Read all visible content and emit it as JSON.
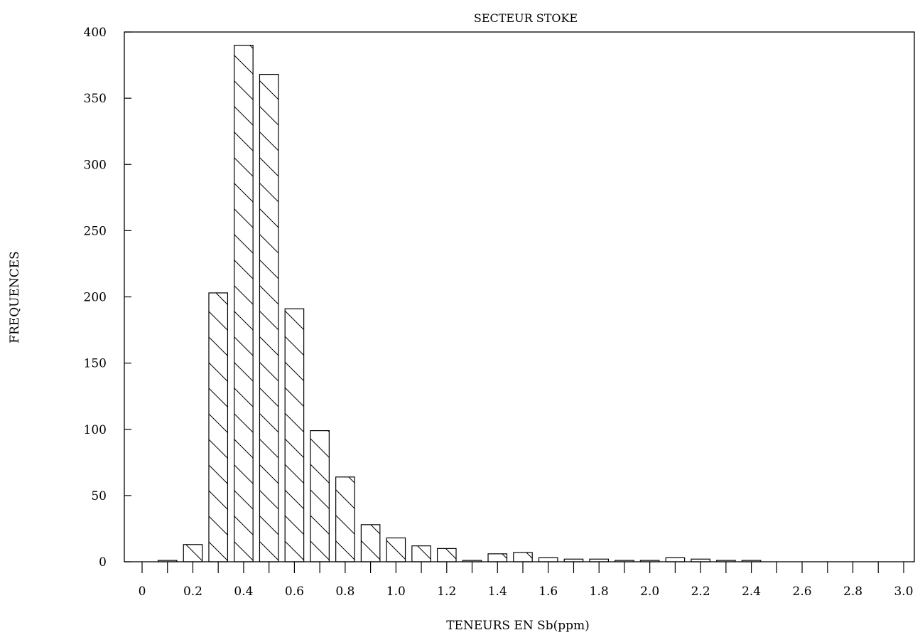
{
  "chart_data": {
    "type": "bar",
    "title": "SECTEUR STOKE",
    "xlabel": "TENEURS EN Sb(ppm)",
    "ylabel": "FREQUENCES",
    "ylim": [
      0,
      400
    ],
    "xlim": [
      0,
      3.0
    ],
    "y_ticks": [
      0,
      50,
      100,
      150,
      200,
      250,
      300,
      350,
      400
    ],
    "x_tick_labels": [
      "0",
      "0.2",
      "0.4",
      "0.6",
      "0.8",
      "1.0",
      "1.2",
      "1.4",
      "1.6",
      "1.8",
      "2.0",
      "2.2",
      "2.4",
      "2.6",
      "2.8",
      "3.0"
    ],
    "bin_width": 0.1,
    "x": [
      0.1,
      0.2,
      0.3,
      0.4,
      0.5,
      0.6,
      0.7,
      0.8,
      0.9,
      1.0,
      1.1,
      1.2,
      1.3,
      1.4,
      1.5,
      1.6,
      1.7,
      1.8,
      1.9,
      2.0,
      2.1,
      2.2,
      2.3,
      2.4
    ],
    "values": [
      1,
      13,
      203,
      390,
      368,
      191,
      99,
      64,
      28,
      18,
      12,
      10,
      1,
      6,
      7,
      3,
      2,
      2,
      1,
      1,
      3,
      2,
      1,
      1
    ],
    "grid": false,
    "pattern": "diagonal-hatch"
  }
}
